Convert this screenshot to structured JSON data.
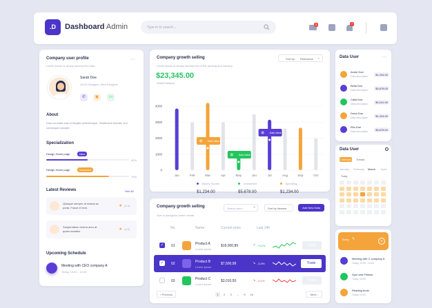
{
  "app": {
    "logo_letter": ".D",
    "title_bold": "Dashboard",
    "title_light": "Admin",
    "search_placeholder": "Type in to search...",
    "badge_mail": "3",
    "badge_bell": "7"
  },
  "profile": {
    "heading": "Company user profile",
    "sub": "Lorem Ipsum is simply dummy text data",
    "name": "Sarah Doe",
    "role": "UX/UI Designer, Web Designer",
    "about_title": "About",
    "about_text": "Duis convallis erat id fringilla pellentesque. Vestibulum blandit, orci consequat suscipit.",
    "spec_title": "Specialization",
    "spec": [
      {
        "label": "Design Home page",
        "tag": "New",
        "pct": "50%",
        "value": 0.5,
        "color": "#5a3dd6"
      },
      {
        "label": "Design Home page",
        "tag": "Important",
        "pct": "76%",
        "value": 0.76,
        "color": "#f4a43a"
      }
    ],
    "reviews_title": "Latest Reviews",
    "see_all": "See All",
    "reviews": [
      {
        "text1": "Quisque semper at massa ac",
        "text2": "porta. Fusce et erat.",
        "score": "(4.5)"
      },
      {
        "text1": "Suspendisse viverra arcu at",
        "text2": "quam sodales.",
        "score": "(4.5)"
      }
    ],
    "schedule_title": "Upcoming Schedule",
    "schedule_item": "Meeting with CEO company A",
    "schedule_time": "Today, 10:00 - 14:00"
  },
  "growth": {
    "title": "Company growth selling",
    "sub": "Lorem Ipsum is simply dummy text of the printing and industry",
    "sort_label": "Sort by:",
    "sort_value": "Relevance",
    "total": "$23,345.00",
    "total_label": "Wallet Balance",
    "legend": [
      {
        "name": "Money Source",
        "value": "$1,234.00",
        "color": "#5a3dd6"
      },
      {
        "name": "Investment",
        "value": "$5,678.00",
        "color": "#22c55e"
      },
      {
        "name": "Spending",
        "value": "$1,234.00",
        "color": "#f4a43a"
      }
    ],
    "tooltips": [
      "Data Value",
      "Data Value",
      "Data Value"
    ]
  },
  "chart_data": {
    "type": "bar",
    "categories": [
      "Jan",
      "Feb",
      "Mar",
      "Apr",
      "May",
      "Jun",
      "Jul",
      "Aug",
      "Sep",
      "Oct"
    ],
    "yticks": [
      "4000",
      "3000",
      "2000",
      "1000",
      "0"
    ],
    "ylim": [
      0,
      4500
    ],
    "series": [
      {
        "values": [
          3850,
          3000,
          4200,
          3000,
          1200,
          3500,
          3150,
          2600,
          2650,
          2000
        ]
      }
    ],
    "highlight": [
      "#5a3dd6",
      null,
      "#f4a43a",
      null,
      "#22c55e",
      null,
      "#5a3dd6",
      null,
      "#f4a43a",
      null
    ]
  },
  "table": {
    "title": "Company growth selling",
    "sub": "Sort of plexiglass under create",
    "search": "Search here...",
    "sort": "Sort by Newest",
    "add": "Add New Data",
    "headers": [
      "No.",
      "Name",
      "Current price",
      "Last 24h"
    ],
    "rows": [
      {
        "no": "01",
        "name": "Product A",
        "desc": "Lorem Ipsum",
        "price": "$19,000,89",
        "change": "+0,2%",
        "btn": "Trade"
      },
      {
        "no": "02",
        "name": "Product B",
        "desc": "Lorem Ipsum",
        "price": "$7,500,98",
        "change": "-0,3%",
        "btn": "Trade"
      },
      {
        "no": "03",
        "name": "Product C",
        "desc": "Lorem Ipsum",
        "price": "$3,010,50",
        "change": "-0,1%",
        "btn": "Trade"
      }
    ],
    "prev": "Previous",
    "next": "Next",
    "pages": [
      "1",
      "2",
      "3",
      "...",
      "9",
      "10"
    ]
  },
  "users": {
    "title": "Data User",
    "list": [
      {
        "name": "Annie Doe",
        "desc": "Data description",
        "price": "$1,234.00",
        "color": "#f4a43a"
      },
      {
        "name": "Bella Doe",
        "desc": "Data description",
        "price": "$3,678.00",
        "color": "#5a3dd6"
      },
      {
        "name": "Calla Doe",
        "desc": "Data description",
        "price": "$9,101.00",
        "color": "#22c55e"
      },
      {
        "name": "Dona Doe",
        "desc": "Data description",
        "price": "$1,234.00",
        "color": "#f4a43a"
      },
      {
        "name": "Ella Doe",
        "desc": "Data description",
        "price": "$3,678.00",
        "color": "#5a3dd6"
      }
    ]
  },
  "calendar": {
    "title": "Data User",
    "tabs": [
      "Calendar",
      "Trends"
    ],
    "months": [
      "January",
      "February",
      "March",
      "April"
    ],
    "today": "Today"
  },
  "todo": {
    "title": "Today",
    "items": [
      {
        "label": "Meeting with C company A",
        "sub": "Today, 10:00 - 14:00",
        "color": "#5a3dd6"
      },
      {
        "label": "Gym and Fitness",
        "sub": "Today, 16:00",
        "color": "#22c55e"
      },
      {
        "label": "Reading book",
        "sub": "Today, 20:00",
        "color": "#f4a43a"
      }
    ]
  }
}
